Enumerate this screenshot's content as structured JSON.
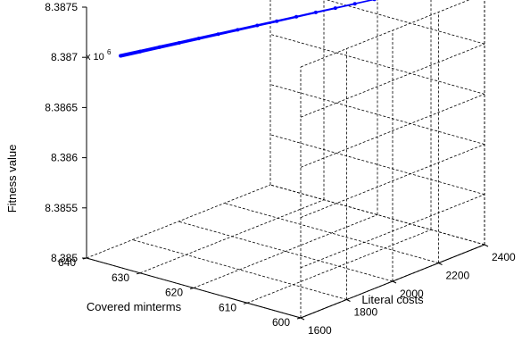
{
  "chart_data": {
    "type": "scatter",
    "projection": "3d",
    "xlabel": "Covered minterms",
    "ylabel": "Literal costs",
    "zlabel": "Fitness value",
    "exponent_prefix": "x 10",
    "exponent_power": "6",
    "xlim": [
      600,
      640
    ],
    "ylim": [
      1600,
      2400
    ],
    "zlim": [
      8.385,
      8.3875
    ],
    "x_ticks": [
      "600",
      "610",
      "620",
      "630",
      "640"
    ],
    "y_ticks": [
      "1600",
      "1800",
      "2000",
      "2200",
      "2400"
    ],
    "z_ticks": [
      "8.385",
      "8.3855",
      "8.386",
      "8.3865",
      "8.387",
      "8.3875"
    ],
    "grid": true,
    "series": [
      {
        "color": "#0000ff",
        "marker": "point",
        "points": [
          [
            637.5,
            1690,
            8.38697
          ],
          [
            636.0,
            1740,
            8.38699
          ],
          [
            634.5,
            1790,
            8.38701
          ],
          [
            633.0,
            1840,
            8.38703
          ],
          [
            631.5,
            1890,
            8.38705
          ],
          [
            630.0,
            1940,
            8.38707
          ],
          [
            628.5,
            1990,
            8.38709
          ],
          [
            627.0,
            2040,
            8.38711
          ],
          [
            625.5,
            2090,
            8.38713
          ],
          [
            624.0,
            2140,
            8.38715
          ],
          [
            622.5,
            2190,
            8.38717
          ],
          [
            621.0,
            2240,
            8.38719
          ],
          [
            619.5,
            2290,
            8.38721
          ],
          [
            618.0,
            2340,
            8.38723
          ]
        ]
      }
    ]
  }
}
